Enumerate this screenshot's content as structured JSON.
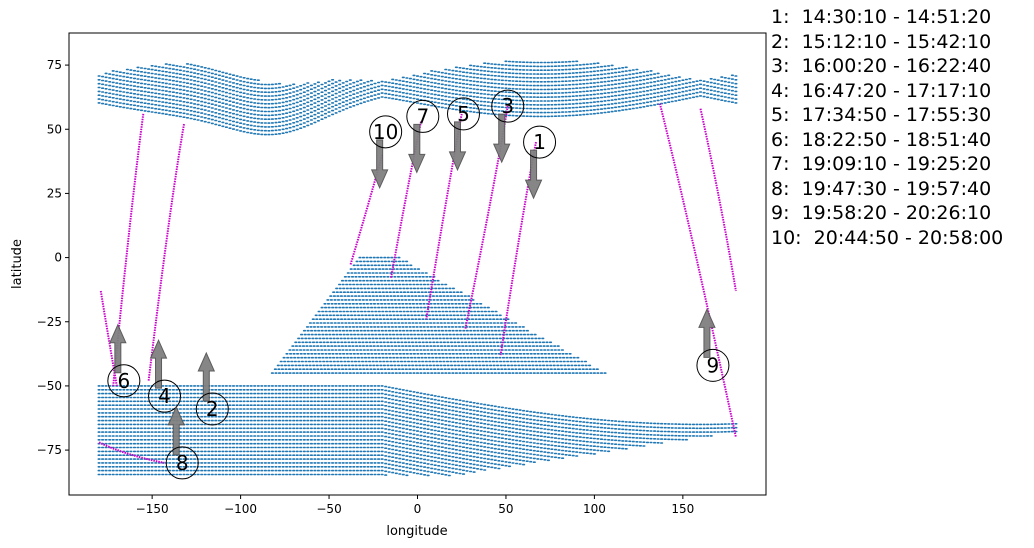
{
  "chart_data": {
    "type": "scatter",
    "xlabel": "longitude",
    "ylabel": "latitude",
    "xlim": [
      -197,
      197
    ],
    "ylim": [
      -92.5,
      87.5
    ],
    "x_ticks": [
      -150,
      -100,
      -50,
      0,
      50,
      100,
      150
    ],
    "y_ticks": [
      -75,
      -50,
      -25,
      0,
      25,
      50,
      75
    ],
    "x_tick_labels": [
      "−150",
      "−100",
      "−50",
      "0",
      "50",
      "100",
      "150"
    ],
    "y_tick_labels": [
      "−75",
      "−50",
      "−25",
      "0",
      "25",
      "50",
      "75"
    ],
    "grid": false,
    "colors": {
      "grid_points": "#1f77b4",
      "tracks": "#cc00cc",
      "arrows": "#808080"
    },
    "track_grid_regions": [
      {
        "lon": [
          -180,
          180
        ],
        "lat_mid": 66,
        "lat_half_width_max": 11,
        "description": "northern band"
      },
      {
        "lon": [
          -80,
          120
        ],
        "lat": [
          -45,
          0
        ],
        "description": "central band"
      },
      {
        "lon": [
          -180,
          180
        ],
        "lat": [
          -85,
          -50
        ],
        "description": "southern band"
      }
    ],
    "tracks": [
      {
        "lon": [
          67,
          60,
          47
        ],
        "lat": [
          45,
          20,
          -38
        ]
      },
      {
        "lon": [
          -132,
          -140,
          -152
        ],
        "lat": [
          52,
          20,
          -48
        ]
      },
      {
        "lon": [
          51,
          44,
          27
        ],
        "lat": [
          59,
          30,
          -28
        ]
      },
      {
        "lon": [
          -155,
          -162,
          -172
        ],
        "lat": [
          56,
          20,
          -50
        ]
      },
      {
        "lon": [
          25,
          18,
          5
        ],
        "lat": [
          56,
          30,
          -24
        ]
      },
      {
        "lon": [
          -179,
          -175,
          -170
        ],
        "lat": [
          -13,
          -30,
          -50
        ]
      },
      {
        "lon": [
          2,
          -5,
          -15
        ],
        "lat": [
          53,
          30,
          -8
        ]
      },
      {
        "lon": [
          -180,
          -165,
          -143
        ],
        "lat": [
          -72,
          -77,
          -80
        ]
      },
      {
        "lon": [
          137,
          155,
          180
        ],
        "lat": [
          60,
          10,
          -70
        ]
      },
      {
        "lon": [
          -20,
          -28,
          -38
        ],
        "lat": [
          40,
          20,
          -3
        ]
      },
      {
        "lon": [
          160,
          172,
          180
        ],
        "lat": [
          58,
          20,
          -13
        ]
      }
    ],
    "markers": [
      {
        "label": "1",
        "lon": 69,
        "lat": 45,
        "arrow_dir": "down"
      },
      {
        "label": "2",
        "lon": -116,
        "lat": -59,
        "arrow_dir": "up"
      },
      {
        "label": "3",
        "lon": 51,
        "lat": 59,
        "arrow_dir": "down"
      },
      {
        "label": "4",
        "lon": -143,
        "lat": -54,
        "arrow_dir": "up"
      },
      {
        "label": "5",
        "lon": 26,
        "lat": 56,
        "arrow_dir": "down"
      },
      {
        "label": "6",
        "lon": -166,
        "lat": -48,
        "arrow_dir": "up"
      },
      {
        "label": "7",
        "lon": 3,
        "lat": 55,
        "arrow_dir": "down"
      },
      {
        "label": "8",
        "lon": -133,
        "lat": -80,
        "arrow_dir": "up"
      },
      {
        "label": "9",
        "lon": 167,
        "lat": -42,
        "arrow_dir": "up"
      },
      {
        "label": "10",
        "lon": -18,
        "lat": 49,
        "arrow_dir": "down"
      }
    ],
    "time_legend": [
      "1:  14:30:10 - 14:51:20",
      "2:  15:12:10 - 15:42:10",
      "3:  16:00:20 - 16:22:40",
      "4:  16:47:20 - 17:17:10",
      "5:  17:34:50 - 17:55:30",
      "6:  18:22:50 - 18:51:40",
      "7:  19:09:10 - 19:25:20",
      "8:  19:47:30 - 19:57:40",
      "9:  19:58:20 - 20:26:10",
      "10:  20:44:50 - 20:58:00"
    ]
  }
}
